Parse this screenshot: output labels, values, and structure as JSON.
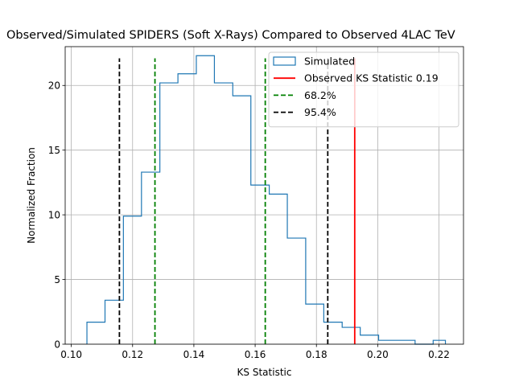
{
  "chart_data": {
    "type": "histogram",
    "title": "Observed/Simulated SPIDERS (Soft X-Rays) Compared to Observed 4LAC TeV",
    "xlabel": "KS Statistic",
    "ylabel": "Normalized Fraction",
    "xlim": [
      0.098,
      0.228
    ],
    "ylim": [
      0,
      23.0
    ],
    "grid": true,
    "x_ticks": [
      "0.10",
      "0.12",
      "0.14",
      "0.16",
      "0.18",
      "0.20",
      "0.22"
    ],
    "y_ticks": [
      "0",
      "5",
      "10",
      "15",
      "20"
    ],
    "bin_edges": [
      0.1051,
      0.111,
      0.117,
      0.1229,
      0.1289,
      0.1348,
      0.1408,
      0.1467,
      0.1527,
      0.1586,
      0.1646,
      0.1705,
      0.1765,
      0.1824,
      0.1884,
      0.1943,
      0.2003,
      0.2062,
      0.2122,
      0.2181,
      0.2221
    ],
    "bin_values": [
      1.7,
      3.4,
      9.9,
      13.3,
      20.2,
      20.9,
      22.3,
      20.2,
      19.2,
      12.3,
      11.6,
      8.2,
      3.1,
      1.7,
      1.3,
      0.7,
      0.3,
      0.3,
      0.0,
      0.3
    ],
    "series": [
      {
        "name": "Simulated",
        "kind": "step",
        "color": "#1f77b4"
      }
    ],
    "vlines": [
      {
        "name": "Observed KS Statistic 0.19",
        "x": 0.1925,
        "color": "#ff0000",
        "style": "solid",
        "ymax": 22.1
      },
      {
        "name": "68.2%",
        "x": 0.1273,
        "color": "#008000",
        "style": "dashed",
        "ymax": 22.1
      },
      {
        "name": "68.2%",
        "x": 0.1633,
        "color": "#008000",
        "style": "dashed",
        "ymax": 22.1
      },
      {
        "name": "95.4%",
        "x": 0.1157,
        "color": "#000000",
        "style": "dashed",
        "ymax": 22.1
      },
      {
        "name": "95.4%",
        "x": 0.1837,
        "color": "#000000",
        "style": "dashed",
        "ymax": 22.1
      }
    ],
    "legend": {
      "placement": "top-right",
      "entries": [
        {
          "label": "Simulated",
          "type": "patch",
          "color": "#1f77b4"
        },
        {
          "label": "Observed KS Statistic 0.19",
          "type": "line",
          "color": "#ff0000",
          "style": "solid"
        },
        {
          "label": "68.2%",
          "type": "line",
          "color": "#008000",
          "style": "dashed"
        },
        {
          "label": "95.4%",
          "type": "line",
          "color": "#000000",
          "style": "dashed"
        }
      ]
    }
  }
}
